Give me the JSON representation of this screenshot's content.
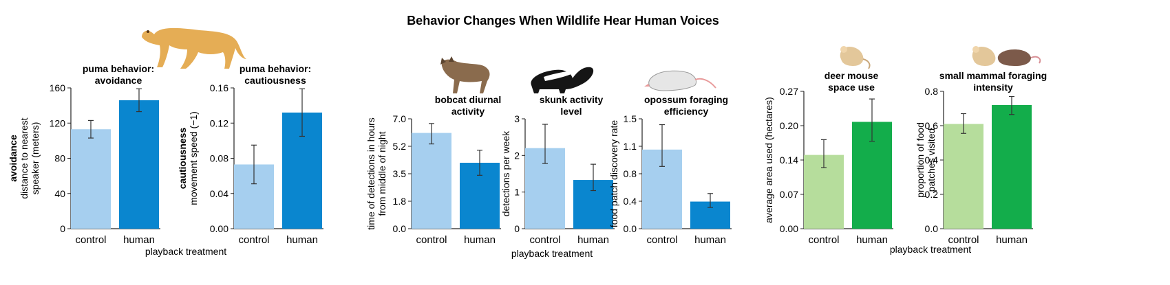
{
  "title": "Behavior Changes When Wildlife Hear Human Voices",
  "group_xlabels": [
    "playback treatment",
    "playback treatment",
    "playback treatment"
  ],
  "colors": {
    "blue_light": "#a6cfef",
    "blue_dark": "#0a86cf",
    "green_light": "#b6dd9c",
    "green_dark": "#13ad4b",
    "axis": "#222222"
  },
  "icons": [
    "puma-icon",
    "bobcat-icon",
    "skunk-icon",
    "opossum-icon",
    "deer-mouse-icon",
    "rat-icon"
  ],
  "chart_data": [
    {
      "type": "bar",
      "title": [
        "puma behavior:",
        "avoidance"
      ],
      "ylabel": [
        "avoidance",
        "distance to nearest",
        "speaker (meters)"
      ],
      "categories": [
        "control",
        "human"
      ],
      "values": [
        113,
        146
      ],
      "errors": [
        [
          103,
          123
        ],
        [
          133,
          159
        ]
      ],
      "ylim": [
        0,
        160
      ],
      "ticks": [
        "0",
        "40",
        "80",
        "120",
        "160"
      ],
      "palette": "blue"
    },
    {
      "type": "bar",
      "title": [
        "puma behavior:",
        "cautiousness"
      ],
      "ylabel": [
        "cautiousness",
        "movement speed (−1)"
      ],
      "categories": [
        "control",
        "human"
      ],
      "values": [
        0.073,
        0.132
      ],
      "errors": [
        [
          0.051,
          0.095
        ],
        [
          0.105,
          0.159
        ]
      ],
      "ylim": [
        0,
        0.16
      ],
      "ticks": [
        "0.00",
        "0.04",
        "0.08",
        "0.12",
        "0.16"
      ],
      "palette": "blue"
    },
    {
      "type": "bar",
      "title": [
        "bobcat diurnal",
        "activity"
      ],
      "ylabel": [
        "time of detections in hours",
        "from middle of night"
      ],
      "categories": [
        "control",
        "human"
      ],
      "values": [
        6.1,
        4.2
      ],
      "errors": [
        [
          5.4,
          6.7
        ],
        [
          3.4,
          5.0
        ]
      ],
      "ylim": [
        0,
        7.0
      ],
      "ticks": [
        "0.0",
        "1.8",
        "3.5",
        "5.2",
        "7.0"
      ],
      "palette": "blue"
    },
    {
      "type": "bar",
      "title": [
        "skunk activity",
        "level"
      ],
      "ylabel": [
        "detections per week"
      ],
      "categories": [
        "control",
        "human"
      ],
      "values": [
        2.2,
        1.33
      ],
      "errors": [
        [
          1.78,
          2.85
        ],
        [
          1.04,
          1.76
        ]
      ],
      "ylim": [
        0,
        3
      ],
      "ticks": [
        "0",
        "1",
        "2",
        "3"
      ],
      "palette": "blue"
    },
    {
      "type": "bar",
      "title": [
        "opossum foraging",
        "efficiency"
      ],
      "ylabel": [
        "food patch discovery rate"
      ],
      "categories": [
        "control",
        "human"
      ],
      "values": [
        1.08,
        0.37
      ],
      "errors": [
        [
          0.85,
          1.42
        ],
        [
          0.29,
          0.48
        ]
      ],
      "ylim": [
        0,
        1.5
      ],
      "ticks": [
        "0.0",
        "0.4",
        "0.8",
        "1.1",
        "1.5"
      ],
      "palette": "blue"
    },
    {
      "type": "bar",
      "title": [
        "deer mouse",
        "space use"
      ],
      "ylabel": [
        "average area used (hectares)"
      ],
      "categories": [
        "control",
        "human"
      ],
      "values": [
        0.145,
        0.21
      ],
      "errors": [
        [
          0.12,
          0.175
        ],
        [
          0.172,
          0.255
        ]
      ],
      "ylim": [
        0,
        0.27
      ],
      "ticks": [
        "0.00",
        "0.07",
        "0.14",
        "0.20",
        "0.27"
      ],
      "palette": "green"
    },
    {
      "type": "bar",
      "title": [
        "small mammal foraging",
        "intensity"
      ],
      "ylabel": [
        "proportion of food",
        "patches visited"
      ],
      "categories": [
        "control",
        "human"
      ],
      "values": [
        0.61,
        0.72
      ],
      "errors": [
        [
          0.555,
          0.67
        ],
        [
          0.665,
          0.77
        ]
      ],
      "ylim": [
        0,
        0.8
      ],
      "ticks": [
        "0.0",
        "0.2",
        "0.4",
        "0.6",
        "0.8"
      ],
      "palette": "green"
    }
  ]
}
